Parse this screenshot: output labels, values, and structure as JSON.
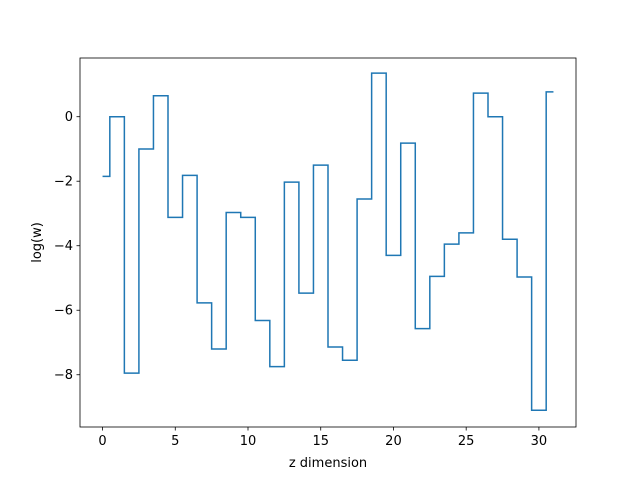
{
  "chart_data": {
    "type": "line",
    "drawstyle": "steps-mid",
    "xlabel": "z dimension",
    "ylabel": "log(w)",
    "xlim": [
      -1.55,
      32.55
    ],
    "ylim": [
      -9.62,
      1.82
    ],
    "x_ticks": [
      0,
      5,
      10,
      15,
      20,
      25,
      30
    ],
    "y_ticks": [
      -8,
      -6,
      -4,
      -2,
      0
    ],
    "y_tick_labels": [
      "−8",
      "−6",
      "−4",
      "−2",
      "0"
    ],
    "grid": false,
    "legend": "none",
    "series": [
      {
        "color": "#1f77b4",
        "x": [
          0,
          1,
          2,
          3,
          4,
          5,
          6,
          7,
          8,
          9,
          10,
          11,
          12,
          13,
          14,
          15,
          16,
          17,
          18,
          19,
          20,
          21,
          22,
          23,
          24,
          25,
          26,
          27,
          28,
          29,
          30,
          31
        ],
        "y": [
          -1.85,
          0.0,
          -7.95,
          -1.0,
          0.65,
          -3.12,
          -1.82,
          -5.77,
          -7.2,
          -2.97,
          -3.12,
          -6.32,
          -7.75,
          -2.03,
          -5.47,
          -1.5,
          -7.14,
          -7.55,
          -2.55,
          1.35,
          -4.3,
          -0.82,
          -6.57,
          -4.95,
          -3.95,
          -3.6,
          0.73,
          0.0,
          -3.8,
          -4.97,
          -9.1,
          0.77
        ]
      }
    ]
  }
}
